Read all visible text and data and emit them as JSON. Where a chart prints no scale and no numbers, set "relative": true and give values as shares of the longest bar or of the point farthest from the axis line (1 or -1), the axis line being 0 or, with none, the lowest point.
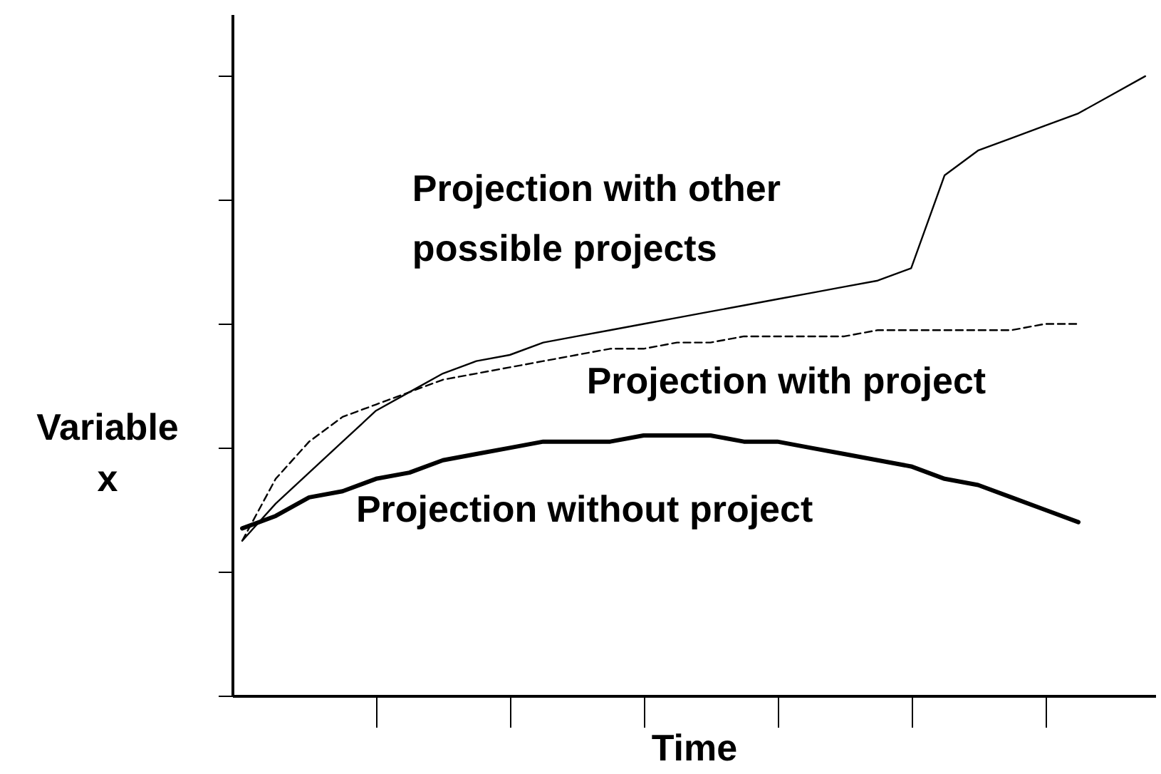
{
  "chart_data": {
    "type": "line",
    "relative": true,
    "xlabel": "Time",
    "ylabel": "Variable x",
    "categories": [
      null,
      null,
      null,
      null,
      null,
      null,
      null,
      null,
      null,
      null,
      null,
      null,
      null,
      null,
      null,
      null,
      null,
      null,
      null,
      null,
      null,
      null,
      null,
      null,
      null,
      null,
      null,
      null
    ],
    "series": [
      {
        "name": "Projection with other possible projects",
        "color": "#000000",
        "line_style": "solid",
        "values": [
          0.25,
          0.31,
          0.36,
          0.41,
          0.46,
          0.49,
          0.52,
          0.54,
          0.55,
          0.57,
          0.58,
          0.59,
          0.6,
          0.61,
          0.62,
          0.63,
          0.64,
          0.65,
          0.66,
          0.67,
          0.69,
          0.84,
          0.88,
          0.9,
          0.92,
          0.94,
          0.97,
          1
        ]
      },
      {
        "name": "Projection with project",
        "color": "#000000",
        "line_style": "dashed",
        "values": [
          0.25,
          0.35,
          0.41,
          0.45,
          0.47,
          0.49,
          0.51,
          0.52,
          0.53,
          0.54,
          0.55,
          0.56,
          0.56,
          0.57,
          0.57,
          0.58,
          0.58,
          0.58,
          0.58,
          0.59,
          0.59,
          0.59,
          0.59,
          0.59,
          0.6,
          0.6,
          null,
          null
        ]
      },
      {
        "name": "Projection without project",
        "color": "#000000",
        "line_style": "solid",
        "values": [
          0.27,
          0.29,
          0.32,
          0.33,
          0.35,
          0.36,
          0.38,
          0.39,
          0.4,
          0.41,
          0.41,
          0.41,
          0.42,
          0.42,
          0.42,
          0.41,
          0.41,
          0.4,
          0.39,
          0.38,
          0.37,
          0.35,
          0.34,
          0.32,
          0.3,
          0.28,
          null,
          null
        ]
      }
    ]
  }
}
